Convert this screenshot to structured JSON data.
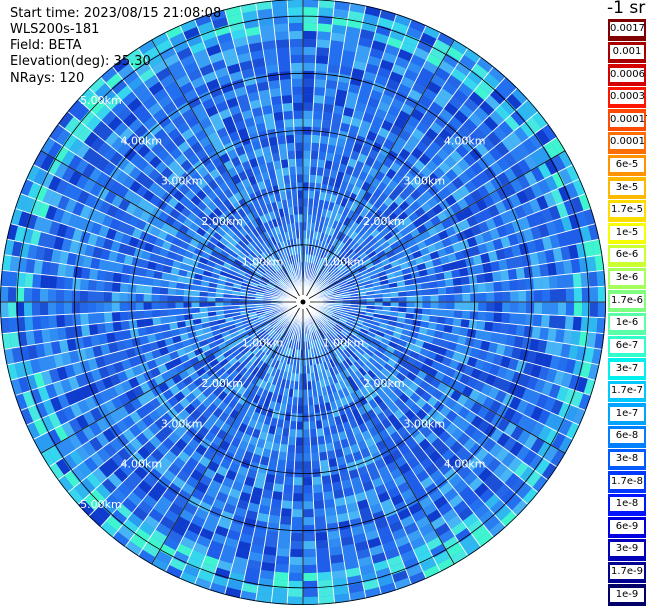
{
  "header": {
    "start_time": "Start time: 2023/08/15 21:08:08",
    "instrument": "WLS200s-181",
    "field": "Field: BETA",
    "elevation": "Elevation(deg): 35.30",
    "nrays": "NRays: 120"
  },
  "colorbar": {
    "unit": "-1 sr",
    "levels": [
      {
        "label": "0.0017",
        "color": "#800000"
      },
      {
        "label": "0.001",
        "color": "#a80000"
      },
      {
        "label": "0.0006",
        "color": "#d40000"
      },
      {
        "label": "0.0003",
        "color": "#ff1500"
      },
      {
        "label": "0.00017",
        "color": "#ff4a00"
      },
      {
        "label": "0.0001",
        "color": "#ff6e00"
      },
      {
        "label": "6e-5",
        "color": "#ff9400"
      },
      {
        "label": "3e-5",
        "color": "#ffb800"
      },
      {
        "label": "1.7e-5",
        "color": "#ffdc00"
      },
      {
        "label": "1e-5",
        "color": "#f5ff00"
      },
      {
        "label": "6e-6",
        "color": "#ccff30"
      },
      {
        "label": "3e-6",
        "color": "#a6ff58"
      },
      {
        "label": "1.7e-6",
        "color": "#7fff7f"
      },
      {
        "label": "1e-6",
        "color": "#58ffa6"
      },
      {
        "label": "6e-7",
        "color": "#30ffcc"
      },
      {
        "label": "3e-7",
        "color": "#00f0f0"
      },
      {
        "label": "1.7e-7",
        "color": "#00c8ff"
      },
      {
        "label": "1e-7",
        "color": "#00a4ff"
      },
      {
        "label": "6e-8",
        "color": "#0080ff"
      },
      {
        "label": "3e-8",
        "color": "#005cff"
      },
      {
        "label": "1.7e-8",
        "color": "#0038ff"
      },
      {
        "label": "1e-8",
        "color": "#0014ff"
      },
      {
        "label": "6e-9",
        "color": "#0000e0"
      },
      {
        "label": "3e-9",
        "color": "#0000b8"
      },
      {
        "label": "1.7e-9",
        "color": "#000090"
      },
      {
        "label": "1e-9",
        "color": "#000068"
      }
    ]
  },
  "range_rings": {
    "values_km": [
      1,
      2,
      3,
      4,
      5
    ],
    "labels": [
      "1.00km",
      "2.00km",
      "3.00km",
      "4.00km",
      "5.00km"
    ]
  },
  "scan": {
    "rays": 120,
    "dominant_color": "#2a7df0",
    "outer_edge_color": "#3ff5d0"
  }
}
